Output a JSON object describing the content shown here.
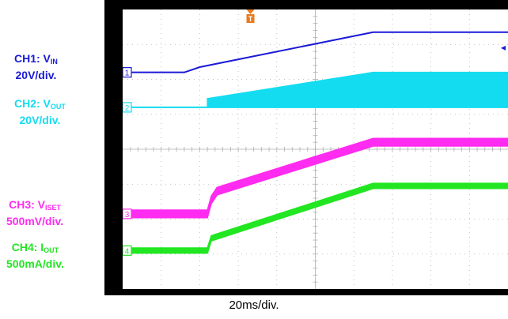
{
  "colors": {
    "ch1": "#1a1ad6",
    "ch2": "#14dcf0",
    "ch3": "#ff2bf0",
    "ch4": "#22e622",
    "trigger": "#e87a1e",
    "screen": "#ffffff",
    "bezel": "#000000",
    "grid": "#b0b0b0"
  },
  "labels": {
    "ch1": {
      "prefix": "CH1: V",
      "sub": "IN",
      "scale": "20V/div."
    },
    "ch2": {
      "prefix": "CH2: V",
      "sub": "OUT",
      "scale": "20V/div."
    },
    "ch3": {
      "prefix": "CH3: V",
      "sub": "ISET",
      "scale": "500mV/div."
    },
    "ch4": {
      "prefix": "CH4: I",
      "sub": "OUT",
      "scale": "500mA/div."
    }
  },
  "markers": {
    "ch1": "1",
    "ch2": "2",
    "ch3": "3",
    "ch4": "4",
    "trigger": "T"
  },
  "timebase": "20ms/div.",
  "chart_data": {
    "type": "line",
    "x_unit": "div",
    "xlim": [
      0,
      10
    ],
    "ylim": [
      0,
      8
    ],
    "grid": true,
    "series": [
      {
        "name": "CH1: VIN",
        "x": [
          0,
          1.6,
          2.0,
          6.5,
          10
        ],
        "y": [
          6.2,
          6.2,
          6.35,
          7.35,
          7.35
        ],
        "band": 0
      },
      {
        "name": "CH2: VOUT",
        "x": [
          0,
          2.2,
          2.2,
          6.5,
          10
        ],
        "y": [
          5.2,
          5.2,
          5.45,
          6.2,
          6.2
        ],
        "band": 0,
        "filled": true
      },
      {
        "name": "CH3: VISET",
        "x": [
          0,
          2.2,
          2.3,
          2.45,
          6.5,
          10
        ],
        "y": [
          2.15,
          2.15,
          2.55,
          2.8,
          4.2,
          4.2
        ],
        "band": 0.22
      },
      {
        "name": "CH4: IOUT",
        "x": [
          0,
          2.2,
          2.3,
          6.5,
          10
        ],
        "y": [
          1.1,
          1.1,
          1.45,
          2.95,
          2.95
        ],
        "band": 0.15
      }
    ],
    "xlabel": "20ms/div."
  }
}
